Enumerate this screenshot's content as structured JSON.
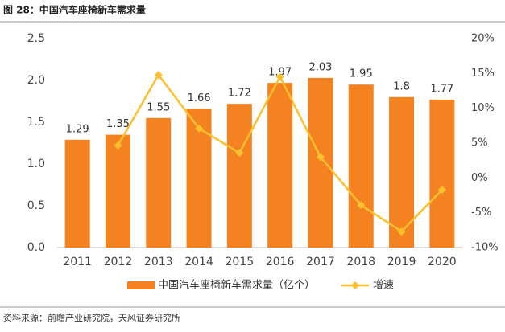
{
  "chart_data": {
    "type": "bar-line",
    "title": "图 28：中国汽车座椅新车需求量",
    "source": "资料来源：前瞻产业研究院，天风证券研究所",
    "categories": [
      "2011",
      "2012",
      "2013",
      "2014",
      "2015",
      "2016",
      "2017",
      "2018",
      "2019",
      "2020"
    ],
    "series": [
      {
        "name": "中国汽车座椅新车需求量（亿个）",
        "type": "bar",
        "color": "#f58220",
        "values": [
          1.29,
          1.35,
          1.55,
          1.66,
          1.72,
          1.97,
          2.03,
          1.95,
          1.8,
          1.77
        ]
      },
      {
        "name": "增速",
        "type": "line",
        "axis": "y2",
        "color": "#fcc02e",
        "values": [
          null,
          4.65,
          14.8,
          7.1,
          3.6,
          14.5,
          3.0,
          -3.9,
          -7.7,
          -1.7
        ]
      }
    ],
    "ylim": [
      0,
      2.5
    ],
    "yticks": [
      {
        "value": 0,
        "label": "0.0"
      },
      {
        "value": 0.5,
        "label": "0.5"
      },
      {
        "value": 1,
        "label": "1.0"
      },
      {
        "value": 1.5,
        "label": "1.5"
      },
      {
        "value": 2,
        "label": "2.0"
      },
      {
        "value": 2.5,
        "label": "2.5"
      }
    ],
    "y2lim": [
      -10,
      20
    ],
    "y2ticks": [
      {
        "value": -10,
        "label": "-10%"
      },
      {
        "value": -5,
        "label": "-5%"
      },
      {
        "value": 0,
        "label": "0%"
      },
      {
        "value": 5,
        "label": "5%"
      },
      {
        "value": 10,
        "label": "10%"
      },
      {
        "value": 15,
        "label": "15%"
      },
      {
        "value": 20,
        "label": "20%"
      }
    ]
  }
}
